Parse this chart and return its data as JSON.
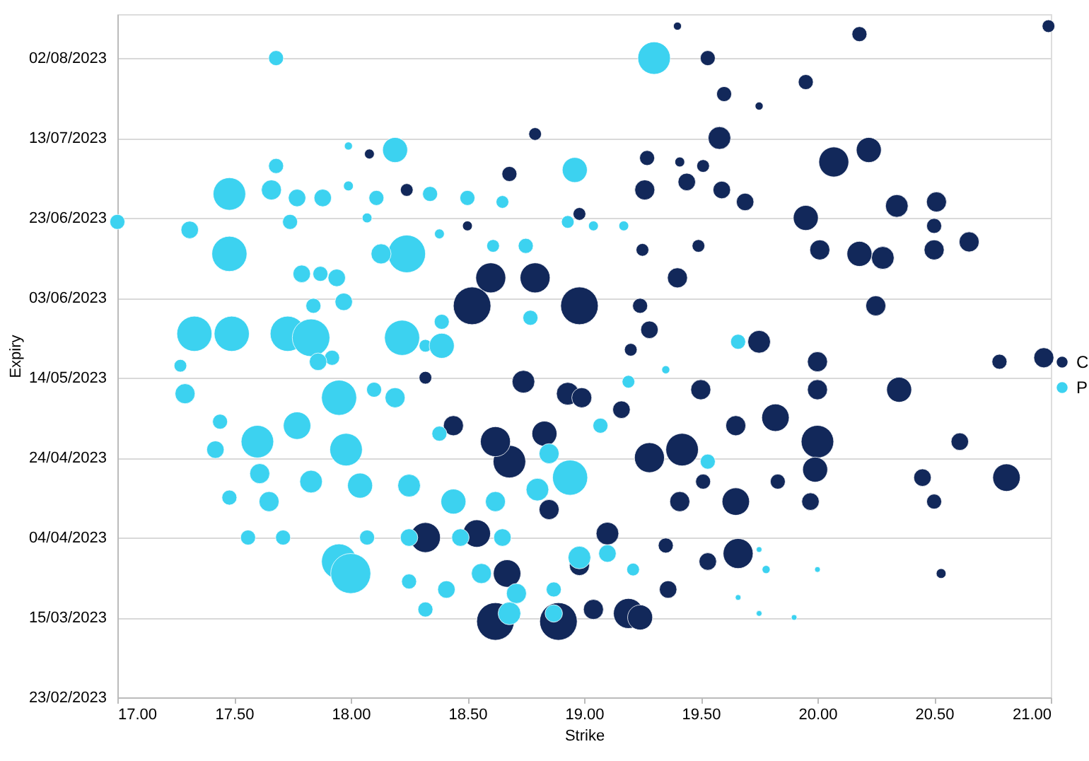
{
  "chart_data": {
    "type": "bubble",
    "orientation": "horizontal",
    "xlabel": "Strike",
    "ylabel": "Expiry",
    "legend": "right",
    "grid": "y",
    "marker": "circle",
    "xlim": [
      17,
      21
    ],
    "xticks": [
      {
        "value": 17,
        "label": "17.00"
      },
      {
        "value": 17.5,
        "label": "17.50"
      },
      {
        "value": 18,
        "label": "18.00"
      },
      {
        "value": 18.5,
        "label": "18.50"
      },
      {
        "value": 19,
        "label": "19.00"
      },
      {
        "value": 19.5,
        "label": "19.50"
      },
      {
        "value": 20,
        "label": "20.00"
      },
      {
        "value": 20.5,
        "label": "20.50"
      },
      {
        "value": 21,
        "label": "21.00"
      }
    ],
    "ylim": [
      "2023-02-23",
      "2023-08-13"
    ],
    "yticks": [
      {
        "value": "2023-02-23",
        "label": "23/02/2023"
      },
      {
        "value": "2023-03-15",
        "label": "15/03/2023"
      },
      {
        "value": "2023-04-04",
        "label": "04/04/2023"
      },
      {
        "value": "2023-04-24",
        "label": "24/04/2023"
      },
      {
        "value": "2023-05-14",
        "label": "14/05/2023"
      },
      {
        "value": "2023-06-03",
        "label": "03/06/2023"
      },
      {
        "value": "2023-06-23",
        "label": "23/06/2023"
      },
      {
        "value": "2023-07-13",
        "label": "13/07/2023"
      },
      {
        "value": "2023-08-02",
        "label": "02/08/2023"
      }
    ],
    "series": [
      {
        "name": "C",
        "color": "#12285a",
        "values": [
          19.4,
          20.18,
          20.99,
          19.53,
          19.6,
          19.75,
          19.95,
          18.79,
          19.58,
          20.07,
          20.22,
          19.27,
          19.41,
          19.51,
          19.26,
          19.44,
          19.59,
          19.69,
          19.95,
          20.34,
          20.51,
          20.5,
          20.01,
          20.18,
          20.28,
          20.5,
          20.65,
          19.49,
          19.25,
          18.79,
          18.6,
          18.98,
          18.52,
          19.24,
          19.4,
          19.28,
          19.2,
          19.75,
          20.0,
          20.25,
          20.78,
          20.97,
          20.0,
          20.35,
          19.5,
          18.93,
          19.65,
          19.82,
          20.0,
          19.99,
          20.45,
          20.61,
          20.81,
          20.5,
          19.97,
          19.65,
          19.41,
          19.51,
          19.83,
          19.42,
          19.28,
          19.66,
          19.53,
          20.53,
          19.36,
          19.19,
          19.24,
          18.89,
          18.62,
          19.04,
          18.67,
          18.54,
          18.32,
          18.68,
          18.62,
          18.83,
          18.99,
          19.16,
          18.74,
          18.44,
          18.85,
          19.1,
          18.98,
          19.35,
          18.32,
          18.08,
          18.24,
          18.68,
          18.98,
          18.5
        ],
        "x": [
          "2023-08-10",
          "2023-08-08",
          "2023-08-10",
          "2023-08-02",
          "2023-07-24",
          "2023-07-21",
          "2023-07-27",
          "2023-07-14",
          "2023-07-13",
          "2023-07-07",
          "2023-07-10",
          "2023-07-08",
          "2023-07-07",
          "2023-07-06",
          "2023-06-30",
          "2023-07-02",
          "2023-06-30",
          "2023-06-27",
          "2023-06-23",
          "2023-06-26",
          "2023-06-27",
          "2023-06-21",
          "2023-06-15",
          "2023-06-14",
          "2023-06-13",
          "2023-06-15",
          "2023-06-17",
          "2023-06-16",
          "2023-06-15",
          "2023-06-08",
          "2023-06-08",
          "2023-06-01",
          "2023-06-01",
          "2023-06-01",
          "2023-06-08",
          "2023-05-26",
          "2023-05-21",
          "2023-05-23",
          "2023-05-18",
          "2023-06-01",
          "2023-05-18",
          "2023-05-19",
          "2023-05-11",
          "2023-05-11",
          "2023-05-11",
          "2023-05-10",
          "2023-05-02",
          "2023-05-04",
          "2023-04-28",
          "2023-04-21",
          "2023-04-19",
          "2023-04-28",
          "2023-04-19",
          "2023-04-13",
          "2023-04-13",
          "2023-04-13",
          "2023-04-13",
          "2023-04-18",
          "2023-04-18",
          "2023-04-26",
          "2023-04-24",
          "2023-03-31",
          "2023-03-29",
          "2023-03-26",
          "2023-03-22",
          "2023-03-16",
          "2023-03-15",
          "2023-03-14",
          "2023-03-14",
          "2023-03-17",
          "2023-03-26",
          "2023-04-05",
          "2023-04-04",
          "2023-04-23",
          "2023-04-28",
          "2023-04-30",
          "2023-05-09",
          "2023-05-06",
          "2023-05-13",
          "2023-05-02",
          "2023-04-11",
          "2023-04-05",
          "2023-03-28",
          "2023-04-02",
          "2023-05-14",
          "2023-07-09",
          "2023-06-30",
          "2023-07-04",
          "2023-06-24",
          "2023-06-21"
        ],
        "sizes": [
          0.04,
          0.14,
          0.1,
          0.14,
          0.14,
          0.04,
          0.14,
          0.1,
          0.32,
          0.56,
          0.39,
          0.14,
          0.06,
          0.1,
          0.25,
          0.19,
          0.19,
          0.19,
          0.39,
          0.32,
          0.25,
          0.14,
          0.25,
          0.39,
          0.32,
          0.25,
          0.25,
          0.1,
          0.1,
          0.56,
          0.56,
          0.88,
          0.88,
          0.14,
          0.25,
          0.19,
          0.1,
          0.32,
          0.25,
          0.25,
          0.14,
          0.25,
          0.25,
          0.39,
          0.25,
          0.32,
          0.25,
          0.47,
          0.66,
          0.39,
          0.19,
          0.19,
          0.47,
          0.14,
          0.19,
          0.47,
          0.25,
          0.14,
          0.14,
          0.66,
          0.56,
          0.56,
          0.19,
          0.06,
          0.19,
          0.56,
          0.39,
          0.88,
          0.88,
          0.25,
          0.47,
          0.47,
          0.56,
          0.66,
          0.56,
          0.39,
          0.25,
          0.19,
          0.32,
          0.25,
          0.25,
          0.32,
          0.25,
          0.14,
          0.1,
          0.06,
          0.1,
          0.14,
          0.1,
          0.06
        ]
      },
      {
        "name": "P",
        "color": "#3cd2f0",
        "values": [
          17.68,
          19.3,
          18.19,
          17.68,
          17.99,
          18.96,
          17.48,
          17.66,
          17.77,
          17.88,
          17.99,
          18.11,
          18.34,
          18.5,
          18.65,
          17.31,
          17.0,
          17.74,
          17.48,
          17.79,
          17.87,
          17.94,
          18.24,
          18.13,
          18.07,
          18.38,
          18.61,
          18.75,
          18.93,
          19.04,
          19.17,
          18.77,
          18.39,
          18.32,
          17.84,
          17.97,
          19.66,
          17.33,
          17.49,
          17.73,
          17.83,
          18.22,
          18.39,
          17.92,
          17.29,
          17.27,
          17.44,
          17.42,
          17.6,
          17.77,
          17.98,
          17.95,
          18.19,
          17.86,
          18.1,
          18.38,
          17.83,
          18.04,
          18.25,
          18.44,
          18.62,
          18.8,
          17.65,
          17.48,
          17.61,
          18.94,
          18.85,
          17.95,
          18.0,
          18.07,
          18.25,
          18.47,
          18.65,
          17.71,
          17.56,
          18.25,
          18.41,
          18.56,
          18.71,
          18.87,
          18.32,
          18.68,
          18.87,
          18.98,
          19.1,
          19.21,
          19.53,
          19.07,
          19.19,
          19.35,
          19.75,
          19.9,
          20.0,
          19.75,
          19.78,
          19.66
        ],
        "x": [
          "2023-08-02",
          "2023-08-02",
          "2023-07-10",
          "2023-07-06",
          "2023-07-11",
          "2023-07-05",
          "2023-06-29",
          "2023-06-30",
          "2023-06-28",
          "2023-06-28",
          "2023-07-01",
          "2023-06-28",
          "2023-06-29",
          "2023-06-28",
          "2023-06-27",
          "2023-06-20",
          "2023-06-22",
          "2023-06-22",
          "2023-06-14",
          "2023-06-09",
          "2023-06-09",
          "2023-06-08",
          "2023-06-14",
          "2023-06-14",
          "2023-06-23",
          "2023-06-19",
          "2023-06-16",
          "2023-06-16",
          "2023-06-22",
          "2023-06-21",
          "2023-06-21",
          "2023-05-29",
          "2023-05-28",
          "2023-05-22",
          "2023-06-01",
          "2023-06-02",
          "2023-05-23",
          "2023-05-25",
          "2023-05-25",
          "2023-05-25",
          "2023-05-24",
          "2023-05-24",
          "2023-05-22",
          "2023-05-19",
          "2023-05-10",
          "2023-05-17",
          "2023-05-03",
          "2023-04-26",
          "2023-04-28",
          "2023-05-02",
          "2023-04-26",
          "2023-05-09",
          "2023-05-09",
          "2023-05-18",
          "2023-05-11",
          "2023-04-30",
          "2023-04-18",
          "2023-04-17",
          "2023-04-17",
          "2023-04-13",
          "2023-04-13",
          "2023-04-16",
          "2023-04-13",
          "2023-04-14",
          "2023-04-20",
          "2023-04-19",
          "2023-04-25",
          "2023-03-29",
          "2023-03-26",
          "2023-04-04",
          "2023-04-04",
          "2023-04-04",
          "2023-04-04",
          "2023-04-04",
          "2023-04-04",
          "2023-03-24",
          "2023-03-22",
          "2023-03-26",
          "2023-03-21",
          "2023-03-22",
          "2023-03-17",
          "2023-03-16",
          "2023-03-16",
          "2023-03-30",
          "2023-03-31",
          "2023-03-27",
          "2023-04-23",
          "2023-05-02",
          "2023-05-13",
          "2023-05-16",
          "2023-03-16",
          "2023-03-15",
          "2023-03-27",
          "2023-04-01",
          "2023-03-27",
          "2023-03-20"
        ],
        "sizes": [
          0.14,
          0.66,
          0.39,
          0.14,
          0.04,
          0.39,
          0.66,
          0.25,
          0.19,
          0.19,
          0.06,
          0.14,
          0.14,
          0.14,
          0.1,
          0.19,
          0.14,
          0.14,
          0.77,
          0.19,
          0.14,
          0.19,
          0.88,
          0.25,
          0.06,
          0.06,
          0.1,
          0.14,
          0.1,
          0.06,
          0.06,
          0.14,
          0.14,
          0.1,
          0.14,
          0.19,
          0.14,
          0.77,
          0.77,
          0.77,
          0.88,
          0.77,
          0.39,
          0.14,
          0.25,
          0.1,
          0.14,
          0.19,
          0.66,
          0.47,
          0.66,
          0.77,
          0.25,
          0.19,
          0.14,
          0.14,
          0.32,
          0.39,
          0.32,
          0.39,
          0.25,
          0.32,
          0.25,
          0.14,
          0.25,
          0.77,
          0.25,
          0.77,
          1,
          0.14,
          0.19,
          0.19,
          0.19,
          0.14,
          0.14,
          0.14,
          0.19,
          0.25,
          0.25,
          0.14,
          0.14,
          0.32,
          0.19,
          0.32,
          0.19,
          0.1,
          0.14,
          0.14,
          0.1,
          0.04,
          0.02,
          0.02,
          0.02,
          0.02,
          0.04,
          0.02
        ]
      }
    ]
  }
}
